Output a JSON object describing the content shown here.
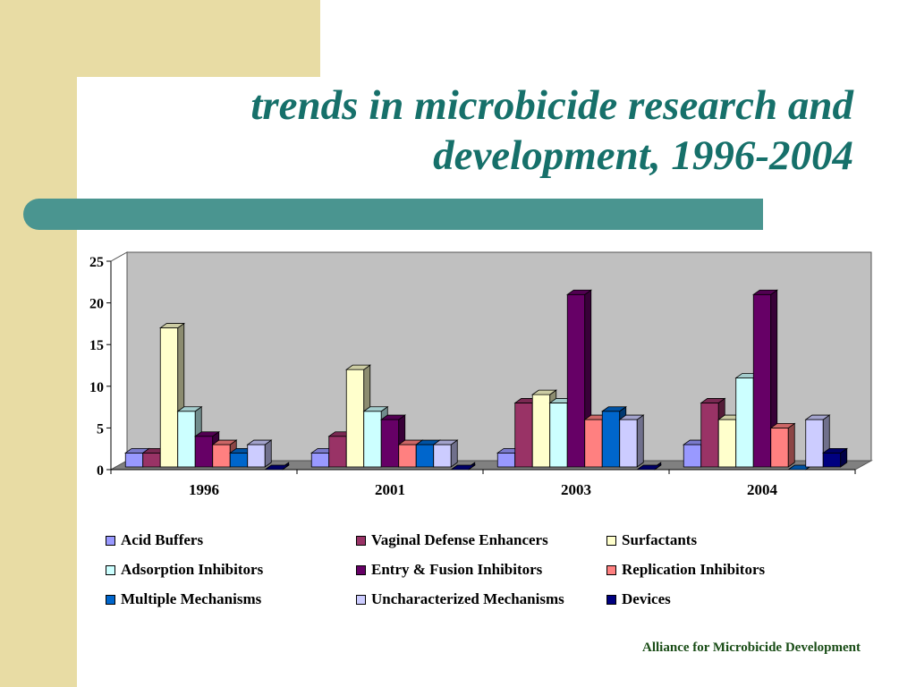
{
  "slide": {
    "title_line1": "trends in microbicide research and",
    "title_line2": "development, 1996-2004",
    "footer": "Alliance for Microbicide Development"
  },
  "colors": {
    "sidebar": "#e8dca4",
    "title": "#16706a",
    "teal_bar": "#4a9590",
    "plot_wall": "#c0c0c0",
    "plot_floor": "#808080"
  },
  "chart_data": {
    "type": "bar",
    "title": "",
    "xlabel": "",
    "ylabel": "",
    "ylim": [
      0,
      25
    ],
    "yticks": [
      0,
      5,
      10,
      15,
      20,
      25
    ],
    "grid": false,
    "legend_position": "bottom",
    "categories": [
      "1996",
      "2001",
      "2003",
      "2004"
    ],
    "series": [
      {
        "name": "Acid Buffers",
        "color": "#9999ff",
        "values": [
          2,
          2,
          2,
          3
        ]
      },
      {
        "name": "Vaginal Defense Enhancers",
        "color": "#993366",
        "values": [
          2,
          4,
          8,
          8
        ]
      },
      {
        "name": "Surfactants",
        "color": "#ffffcc",
        "values": [
          17,
          12,
          9,
          6
        ]
      },
      {
        "name": "Adsorption Inhibitors",
        "color": "#ccffff",
        "values": [
          7,
          7,
          8,
          11
        ]
      },
      {
        "name": "Entry & Fusion Inhibitors",
        "color": "#660066",
        "values": [
          4,
          6,
          21,
          21
        ]
      },
      {
        "name": "Replication Inhibitors",
        "color": "#ff8080",
        "values": [
          3,
          3,
          6,
          5
        ]
      },
      {
        "name": "Multiple Mechanisms",
        "color": "#0066cc",
        "values": [
          2,
          3,
          7,
          0
        ]
      },
      {
        "name": "Uncharacterized Mechanisms",
        "color": "#ccccff",
        "values": [
          3,
          3,
          6,
          6
        ]
      },
      {
        "name": "Devices",
        "color": "#000080",
        "values": [
          0,
          0,
          0,
          2
        ]
      }
    ]
  }
}
